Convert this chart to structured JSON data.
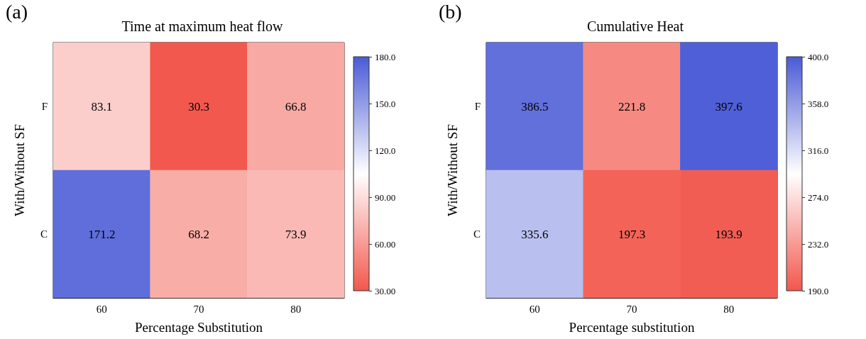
{
  "chart_data": [
    {
      "type": "heatmap",
      "title": "Time at maximum heat flow",
      "annotations": [
        "(a)"
      ],
      "xlabel": "Percentage Substitution",
      "ylabel": "With/Without SF",
      "categories": [
        "60",
        "70",
        "80"
      ],
      "y_categories": [
        "F",
        "C"
      ],
      "cells": [
        [
          83.1,
          30.3,
          66.8
        ],
        [
          171.2,
          68.2,
          73.9
        ]
      ],
      "data_labels": true,
      "clim": [
        30,
        180
      ],
      "cticks": [
        {
          "value": 30,
          "label": "30.00"
        },
        {
          "value": 60,
          "label": "60.00"
        },
        {
          "value": 90,
          "label": "90.00"
        },
        {
          "value": 120,
          "label": "120.0"
        },
        {
          "value": 150,
          "label": "150.0"
        },
        {
          "value": 180,
          "label": "180.0"
        }
      ]
    },
    {
      "type": "heatmap",
      "title": "Cumulative Heat",
      "annotations": [
        "(b)"
      ],
      "xlabel": "Percentage substitution",
      "ylabel": "With/Without SF",
      "categories": [
        "60",
        "70",
        "80"
      ],
      "y_categories": [
        "F",
        "C"
      ],
      "cells": [
        [
          386.5,
          221.8,
          397.6
        ],
        [
          335.6,
          197.3,
          193.9
        ]
      ],
      "data_labels": true,
      "clim": [
        190,
        400
      ],
      "cticks": [
        {
          "value": 190,
          "label": "190.0"
        },
        {
          "value": 232,
          "label": "232.0"
        },
        {
          "value": 274,
          "label": "274.0"
        },
        {
          "value": 316,
          "label": "316.0"
        },
        {
          "value": 358,
          "label": "358.0"
        },
        {
          "value": 400,
          "label": "400.0"
        }
      ]
    }
  ]
}
